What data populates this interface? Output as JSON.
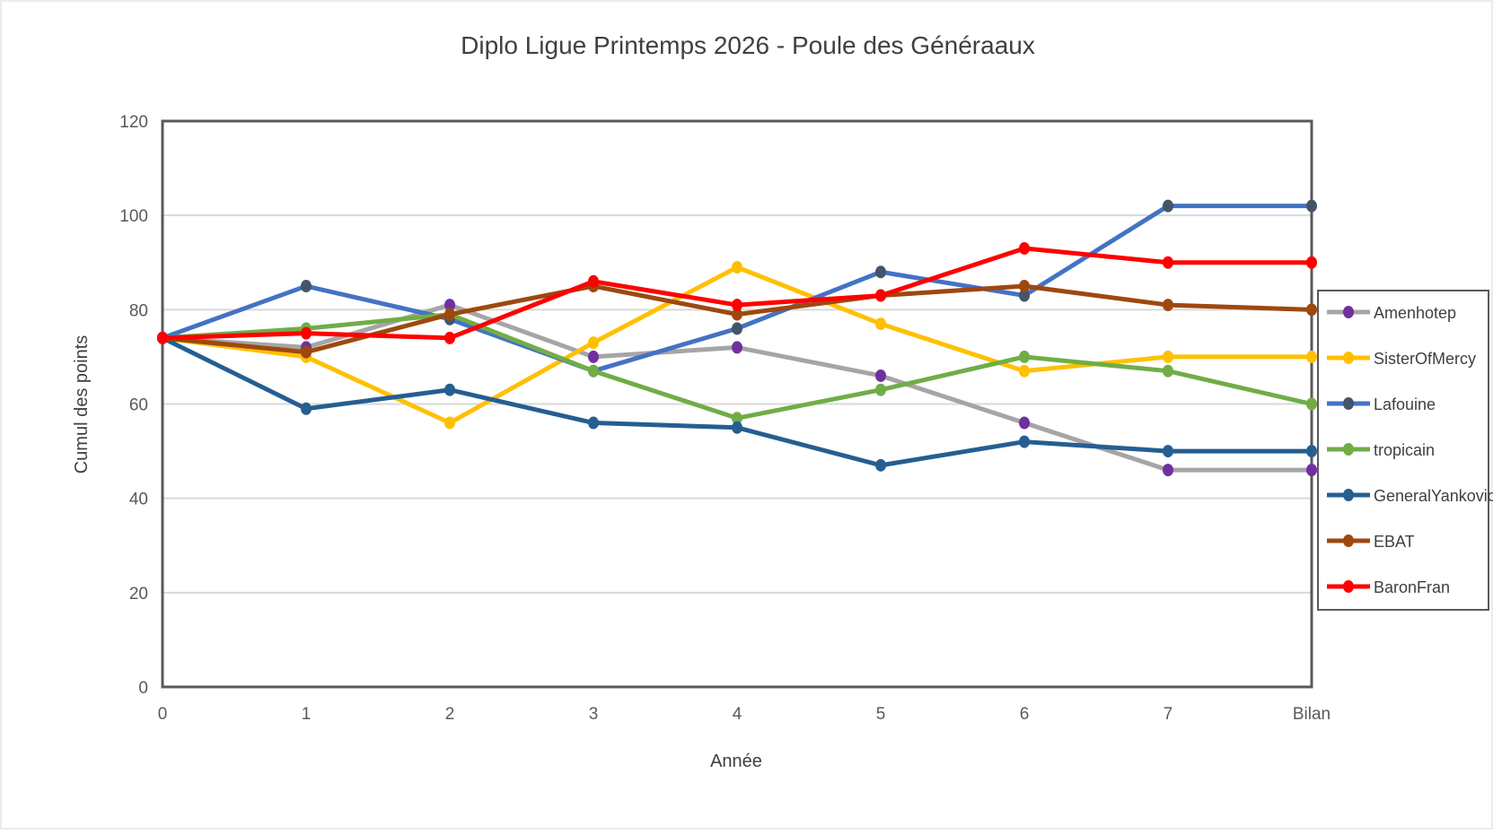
{
  "chart_data": {
    "type": "line",
    "title": "Diplo Ligue Printemps 2026 - Poule des Généraaux",
    "xlabel": "Année",
    "ylabel": "Cumul des points",
    "categories": [
      "0",
      "1",
      "2",
      "3",
      "4",
      "5",
      "6",
      "7",
      "Bilan"
    ],
    "ylim": [
      0,
      120
    ],
    "yticks": [
      0,
      20,
      40,
      60,
      80,
      100,
      120
    ],
    "grid": "horizontal",
    "legend_position": "right",
    "series": [
      {
        "name": "Amenhotep",
        "color": "#a5a5a5",
        "marker_color": "#7030a0",
        "values": [
          74,
          72,
          81,
          70,
          72,
          66,
          56,
          46,
          46
        ]
      },
      {
        "name": "SisterOfMercy",
        "color": "#ffc000",
        "marker_color": "#ffc000",
        "values": [
          74,
          70,
          56,
          73,
          89,
          77,
          67,
          70,
          70
        ]
      },
      {
        "name": "Lafouine",
        "color": "#4472c4",
        "marker_color": "#44546a",
        "values": [
          74,
          85,
          78,
          67,
          76,
          88,
          83,
          102,
          102
        ]
      },
      {
        "name": "tropicain",
        "color": "#70ad47",
        "marker_color": "#70ad47",
        "values": [
          74,
          76,
          79,
          67,
          57,
          63,
          70,
          67,
          60
        ]
      },
      {
        "name": "GeneralYankovic",
        "color": "#255e91",
        "marker_color": "#255e91",
        "values": [
          74,
          59,
          63,
          56,
          55,
          47,
          52,
          50,
          50
        ]
      },
      {
        "name": "EBAT",
        "color": "#9e480e",
        "marker_color": "#9e480e",
        "values": [
          74,
          71,
          79,
          85,
          79,
          83,
          85,
          81,
          80
        ]
      },
      {
        "name": "BaronFran",
        "color": "#ff0000",
        "marker_color": "#ff0000",
        "values": [
          74,
          75,
          74,
          86,
          81,
          83,
          93,
          90,
          90
        ]
      }
    ]
  }
}
